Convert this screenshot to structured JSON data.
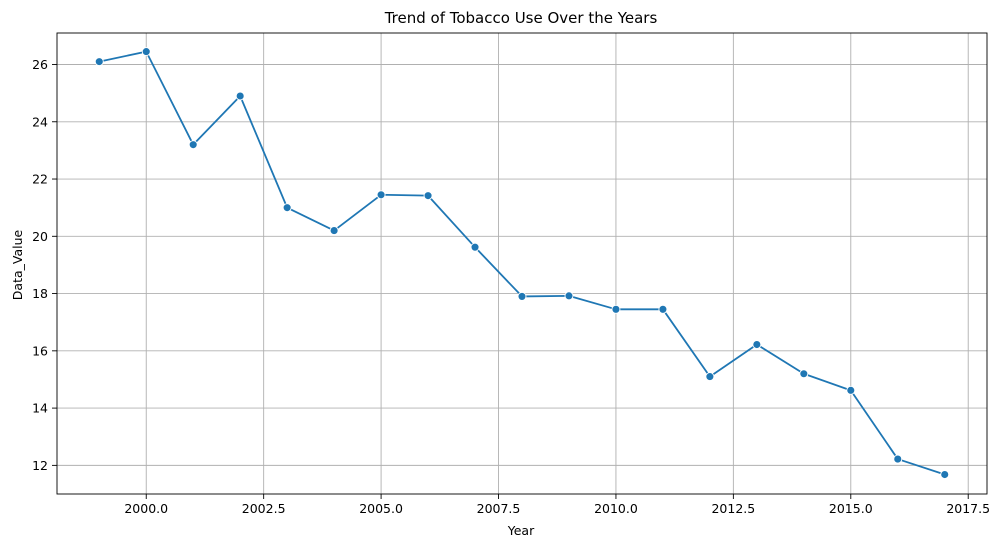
{
  "chart_data": {
    "type": "line",
    "title": "Trend of Tobacco Use Over the Years",
    "xlabel": "Year",
    "ylabel": "Data_Value",
    "xlim": [
      1998.1,
      2017.9
    ],
    "ylim": [
      11.0,
      27.1
    ],
    "x_ticks": [
      2000.0,
      2002.5,
      2005.0,
      2007.5,
      2010.0,
      2012.5,
      2015.0,
      2017.5
    ],
    "x_tick_labels": [
      "2000.0",
      "2002.5",
      "2005.0",
      "2007.5",
      "2010.0",
      "2012.5",
      "2015.0",
      "2017.5"
    ],
    "y_ticks": [
      12,
      14,
      16,
      18,
      20,
      22,
      24,
      26
    ],
    "y_tick_labels": [
      "12",
      "14",
      "16",
      "18",
      "20",
      "22",
      "24",
      "26"
    ],
    "grid": true,
    "color": "#1f77b4",
    "series": [
      {
        "x": [
          1999,
          2000,
          2001,
          2002,
          2003,
          2004,
          2005,
          2006,
          2007,
          2008,
          2009,
          2010,
          2011,
          2012,
          2013,
          2014,
          2015,
          2016,
          2017
        ],
        "values": [
          26.1,
          26.45,
          23.2,
          24.9,
          21.0,
          20.2,
          21.45,
          21.42,
          19.62,
          17.9,
          17.92,
          17.45,
          17.45,
          15.1,
          16.22,
          15.2,
          14.62,
          12.22,
          11.68
        ]
      }
    ]
  }
}
